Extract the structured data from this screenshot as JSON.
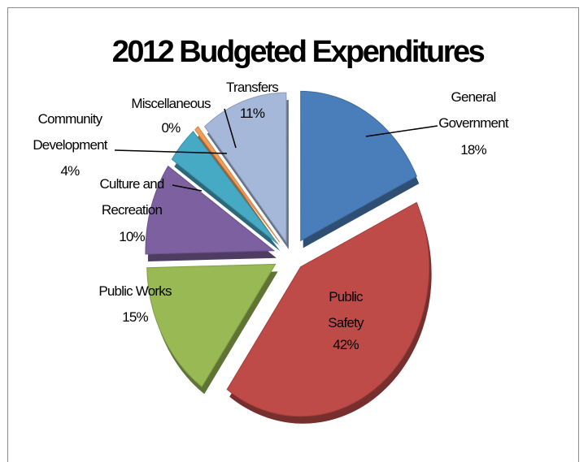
{
  "chart_data": {
    "type": "pie",
    "title": "2012 Budgeted Expenditures",
    "series": [
      {
        "values": [
          18,
          42,
          15,
          10,
          4,
          0,
          11
        ]
      }
    ],
    "categories": [
      "General Government",
      "Public Safety",
      "Public Works",
      "Culture and Recreation",
      "Community Development",
      "Miscellaneous",
      "Transfers"
    ],
    "slices": [
      {
        "label": "General Government",
        "value": 18,
        "pct": "18%",
        "color": "#4a7ebb"
      },
      {
        "label": "Public Safety",
        "value": 42,
        "pct": "42%",
        "color": "#be4b48"
      },
      {
        "label": "Public Works",
        "value": 15,
        "pct": "15%",
        "color": "#98b954"
      },
      {
        "label": "Culture and Recreation",
        "value": 10,
        "pct": "10%",
        "color": "#7d60a0"
      },
      {
        "label": "Community Development",
        "value": 4,
        "pct": "4%",
        "color": "#46aac5"
      },
      {
        "label": "Miscellaneous",
        "value": 0.5,
        "pct": "0%",
        "color": "#f59d56"
      },
      {
        "label": "Transfers",
        "value": 11,
        "pct": "11%",
        "color": "#a5b8d9"
      }
    ],
    "legend": "none",
    "exploded": true
  }
}
